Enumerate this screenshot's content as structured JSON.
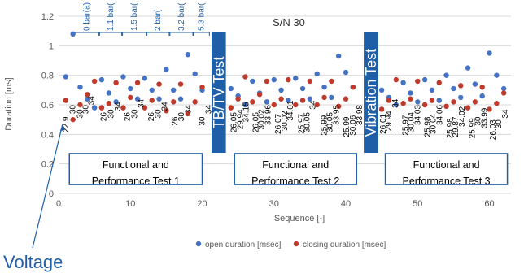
{
  "chart_data": {
    "type": "scatter",
    "title": "S/N 30",
    "xlabel": "Sequence [-]",
    "ylabel": "Duration [ms]",
    "xlim": [
      0,
      63
    ],
    "ylim": [
      0,
      1.2
    ],
    "xticks": [
      "0",
      "10",
      "20",
      "30",
      "40",
      "50",
      "60"
    ],
    "yticks": [
      "0",
      "0.2",
      "0.4",
      "0.6",
      "0.8",
      "1",
      "1.2"
    ],
    "grid": "horizontal",
    "legend_position": "bottom",
    "colors": {
      "open": "#4472c4",
      "closing": "#c0392b"
    },
    "series": [
      {
        "name": "open duration [msec]",
        "points": [
          [
            1,
            0.79
          ],
          [
            2,
            1.08
          ],
          [
            3,
            0.72
          ],
          [
            4,
            0.64
          ],
          [
            5,
            0.58
          ],
          [
            6,
            0.77
          ],
          [
            7,
            0.68
          ],
          [
            8,
            0.62
          ],
          [
            9,
            0.79
          ],
          [
            10,
            0.71
          ],
          [
            11,
            0.64
          ],
          [
            12,
            0.78
          ],
          [
            13,
            0.7
          ],
          [
            14,
            0.64
          ],
          [
            15,
            0.84
          ],
          [
            16,
            0.7
          ],
          [
            17,
            0.64
          ],
          [
            18,
            0.94
          ],
          [
            19,
            0.81
          ],
          [
            20,
            0.7
          ],
          [
            24,
            0.71
          ],
          [
            25,
            0.66
          ],
          [
            26,
            0.6
          ],
          [
            27,
            0.76
          ],
          [
            28,
            0.68
          ],
          [
            29,
            0.62
          ],
          [
            30,
            0.77
          ],
          [
            31,
            0.7
          ],
          [
            32,
            0.63
          ],
          [
            33,
            0.78
          ],
          [
            34,
            0.71
          ],
          [
            35,
            0.64
          ],
          [
            36,
            0.81
          ],
          [
            37,
            0.72
          ],
          [
            38,
            0.65
          ],
          [
            39,
            0.93
          ],
          [
            40,
            0.82
          ],
          [
            41,
            0.72
          ],
          [
            45,
            0.7
          ],
          [
            46,
            0.65
          ],
          [
            47,
            0.6
          ],
          [
            48,
            0.75
          ],
          [
            49,
            0.68
          ],
          [
            50,
            0.62
          ],
          [
            51,
            0.77
          ],
          [
            52,
            0.7
          ],
          [
            53,
            0.63
          ],
          [
            54,
            0.8
          ],
          [
            55,
            0.71
          ],
          [
            56,
            0.65
          ],
          [
            57,
            0.85
          ],
          [
            58,
            0.74
          ],
          [
            59,
            0.66
          ],
          [
            60,
            0.95
          ],
          [
            61,
            0.8
          ],
          [
            62,
            0.71
          ]
        ]
      },
      {
        "name": "closing duration [msec]",
        "points": [
          [
            1,
            0.63
          ],
          [
            2,
            0.5
          ],
          [
            3,
            0.6
          ],
          [
            4,
            0.67
          ],
          [
            5,
            0.76
          ],
          [
            6,
            0.58
          ],
          [
            7,
            0.61
          ],
          [
            8,
            0.75
          ],
          [
            9,
            0.58
          ],
          [
            10,
            0.65
          ],
          [
            11,
            0.75
          ],
          [
            12,
            0.58
          ],
          [
            13,
            0.63
          ],
          [
            14,
            0.74
          ],
          [
            15,
            0.56
          ],
          [
            16,
            0.62
          ],
          [
            17,
            0.74
          ],
          [
            18,
            0.54
          ],
          [
            19,
            0.62
          ],
          [
            20,
            0.72
          ],
          [
            24,
            0.58
          ],
          [
            25,
            0.64
          ],
          [
            26,
            0.79
          ],
          [
            27,
            0.62
          ],
          [
            28,
            0.67
          ],
          [
            29,
            0.76
          ],
          [
            30,
            0.6
          ],
          [
            31,
            0.64
          ],
          [
            32,
            0.77
          ],
          [
            33,
            0.6
          ],
          [
            34,
            0.63
          ],
          [
            35,
            0.76
          ],
          [
            36,
            0.6
          ],
          [
            37,
            0.65
          ],
          [
            38,
            0.76
          ],
          [
            39,
            0.59
          ],
          [
            40,
            0.64
          ],
          [
            41,
            0.72
          ],
          [
            45,
            0.57
          ],
          [
            46,
            0.63
          ],
          [
            47,
            0.77
          ],
          [
            48,
            0.61
          ],
          [
            49,
            0.64
          ],
          [
            50,
            0.76
          ],
          [
            51,
            0.6
          ],
          [
            52,
            0.63
          ],
          [
            53,
            0.75
          ],
          [
            54,
            0.59
          ],
          [
            55,
            0.62
          ],
          [
            56,
            0.73
          ],
          [
            57,
            0.58
          ],
          [
            58,
            0.62
          ],
          [
            59,
            0.72
          ],
          [
            60,
            0.57
          ],
          [
            61,
            0.61
          ],
          [
            62,
            0.68
          ]
        ]
      }
    ],
    "data_labels": [
      {
        "x": 1,
        "y": 0.52,
        "text": "22.9"
      },
      {
        "x": 2,
        "y": 0.6,
        "text": "30"
      },
      {
        "x": 3,
        "y": 0.57,
        "text": "30"
      },
      {
        "x": 3.8,
        "y": 0.6,
        "text": "30"
      },
      {
        "x": 4.6,
        "y": 0.66,
        "text": "34"
      },
      {
        "x": 6.3,
        "y": 0.55,
        "text": "26"
      },
      {
        "x": 7.3,
        "y": 0.57,
        "text": "30"
      },
      {
        "x": 8.3,
        "y": 0.62,
        "text": "34"
      },
      {
        "x": 9.6,
        "y": 0.55,
        "text": "26"
      },
      {
        "x": 10.6,
        "y": 0.57,
        "text": "30"
      },
      {
        "x": 11.5,
        "y": 0.64,
        "text": "34"
      },
      {
        "x": 12.9,
        "y": 0.55,
        "text": "26"
      },
      {
        "x": 13.9,
        "y": 0.57,
        "text": "30"
      },
      {
        "x": 14.8,
        "y": 0.62,
        "text": "34"
      },
      {
        "x": 16.2,
        "y": 0.52,
        "text": "26"
      },
      {
        "x": 17.1,
        "y": 0.55,
        "text": "30"
      },
      {
        "x": 18.1,
        "y": 0.6,
        "text": "34"
      },
      {
        "x": 20,
        "y": 0.52,
        "text": "30"
      },
      {
        "x": 20.9,
        "y": 0.6,
        "text": "34"
      },
      {
        "x": 24.4,
        "y": 0.55,
        "text": "26.05"
      },
      {
        "x": 25.3,
        "y": 0.57,
        "text": "29.94"
      },
      {
        "x": 26.1,
        "y": 0.62,
        "text": "34.15"
      },
      {
        "x": 27.5,
        "y": 0.55,
        "text": "26.05"
      },
      {
        "x": 28.3,
        "y": 0.57,
        "text": "30.02"
      },
      {
        "x": 29.2,
        "y": 0.6,
        "text": "33.96"
      },
      {
        "x": 30.6,
        "y": 0.54,
        "text": "26.07"
      },
      {
        "x": 31.5,
        "y": 0.56,
        "text": "30.02"
      },
      {
        "x": 32.3,
        "y": 0.63,
        "text": "34.01"
      },
      {
        "x": 33.8,
        "y": 0.54,
        "text": "25.97"
      },
      {
        "x": 34.6,
        "y": 0.55,
        "text": "30.05"
      },
      {
        "x": 35.4,
        "y": 0.63,
        "text": "34"
      },
      {
        "x": 37,
        "y": 0.53,
        "text": "25.99"
      },
      {
        "x": 37.8,
        "y": 0.55,
        "text": "30.05"
      },
      {
        "x": 38.7,
        "y": 0.6,
        "text": "33.95"
      },
      {
        "x": 40.1,
        "y": 0.52,
        "text": "25.99"
      },
      {
        "x": 41,
        "y": 0.53,
        "text": "30.06"
      },
      {
        "x": 41.9,
        "y": 0.6,
        "text": "33.98"
      },
      {
        "x": 45.2,
        "y": 0.54,
        "text": "26.01"
      },
      {
        "x": 46,
        "y": 0.56,
        "text": "29.94"
      },
      {
        "x": 46.9,
        "y": 0.64,
        "text": "34"
      },
      {
        "x": 48.3,
        "y": 0.53,
        "text": "25.97"
      },
      {
        "x": 49.1,
        "y": 0.55,
        "text": "30.04"
      },
      {
        "x": 50,
        "y": 0.6,
        "text": "34.03"
      },
      {
        "x": 51.4,
        "y": 0.52,
        "text": "25.98"
      },
      {
        "x": 52.2,
        "y": 0.54,
        "text": "30.04"
      },
      {
        "x": 53.1,
        "y": 0.6,
        "text": "34.06"
      },
      {
        "x": 54.5,
        "y": 0.51,
        "text": "25.98"
      },
      {
        "x": 55.3,
        "y": 0.52,
        "text": "29.87"
      },
      {
        "x": 56.2,
        "y": 0.59,
        "text": "34.02"
      },
      {
        "x": 57.6,
        "y": 0.51,
        "text": "25.99"
      },
      {
        "x": 58.4,
        "y": 0.52,
        "text": "30"
      },
      {
        "x": 59.3,
        "y": 0.58,
        "text": "33.99"
      },
      {
        "x": 60.5,
        "y": 0.5,
        "text": "26.03"
      },
      {
        "x": 61.3,
        "y": 0.5,
        "text": "30"
      },
      {
        "x": 62.2,
        "y": 0.57,
        "text": "34"
      }
    ],
    "pressure_labels": [
      {
        "x0": 2.2,
        "x1": 5.6,
        "text": "0 bar(a)"
      },
      {
        "x0": 5.7,
        "x1": 8.8,
        "text": "1.1 bar("
      },
      {
        "x0": 8.9,
        "x1": 12.2,
        "text": "1.5 bar("
      },
      {
        "x0": 12.3,
        "x1": 15.4,
        "text": "2 bar("
      },
      {
        "x0": 15.5,
        "x1": 18.7,
        "text": "3.2 bar("
      },
      {
        "x0": 18.8,
        "x1": 21,
        "text": "5.3 bar("
      }
    ],
    "test_boxes": [
      {
        "x0": 1.5,
        "x1": 20,
        "y0": 0.06,
        "y1": 0.27,
        "line1": "Functional and",
        "line2": "Performance Test 1"
      },
      {
        "x0": 24.5,
        "x1": 41.5,
        "y0": 0.06,
        "y1": 0.27,
        "line1": "Functional and",
        "line2": "Performance Test 2"
      },
      {
        "x0": 45.5,
        "x1": 62.5,
        "y0": 0.06,
        "y1": 0.27,
        "line1": "Functional and",
        "line2": "Performance Test 3"
      }
    ],
    "vertical_bars": [
      {
        "x0": 21.3,
        "x1": 23.3,
        "text": "TB/TV Test"
      },
      {
        "x0": 42.5,
        "x1": 44.5,
        "text": "Vibration Test"
      }
    ],
    "callout": {
      "text": "Voltage",
      "x": 1,
      "y": 0.5
    }
  }
}
